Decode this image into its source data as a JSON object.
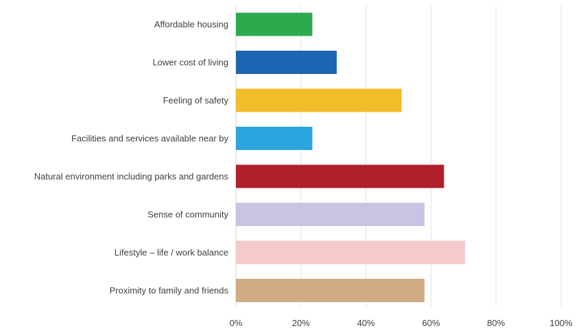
{
  "chart_data": {
    "type": "bar",
    "orientation": "horizontal",
    "title": "",
    "xlabel": "",
    "ylabel": "",
    "xlim": [
      0,
      100
    ],
    "x_ticks": [
      0,
      20,
      40,
      60,
      80,
      100
    ],
    "x_tick_labels": [
      "0%",
      "20%",
      "40%",
      "60%",
      "80%",
      "100%"
    ],
    "grid": "vertical",
    "legend": "none",
    "categories": [
      "Affordable housing",
      "Lower cost of living",
      "Feeling of safety",
      "Facilities and services available near by",
      "Natural environment including parks and gardens",
      "Sense of community",
      "Lifestyle – life / work balance",
      "Proximity to family and friends"
    ],
    "values": [
      23.5,
      31,
      51,
      23.5,
      64,
      58,
      70.5,
      58
    ],
    "colors": [
      "#2daa4e",
      "#1d65b3",
      "#f2bd2a",
      "#2ba5e0",
      "#b11f2a",
      "#c8c4e4",
      "#f6cacc",
      "#d0ab84"
    ]
  }
}
